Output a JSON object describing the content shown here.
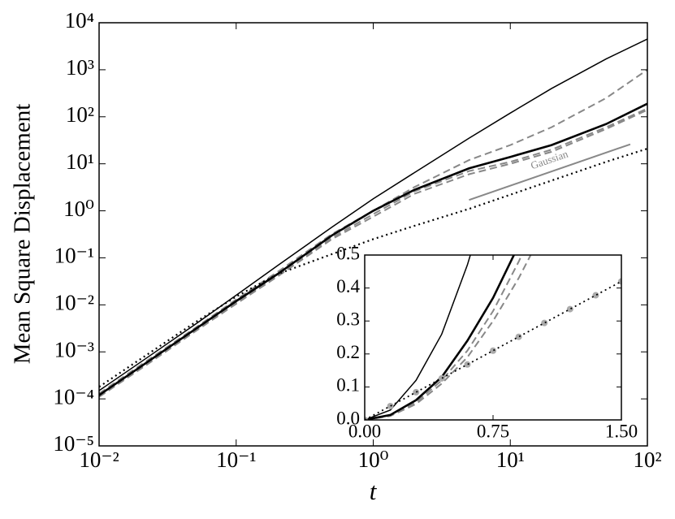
{
  "chart_data": [
    {
      "type": "line",
      "x_label": "t",
      "y_label": "Mean Square Displacement",
      "x_scale": "log",
      "y_scale": "log",
      "xlim": [
        0.01,
        100
      ],
      "ylim": [
        1e-05,
        10000
      ],
      "xticks": [
        {
          "value": 0.01,
          "label": "10⁻²"
        },
        {
          "value": 0.1,
          "label": "10⁻¹"
        },
        {
          "value": 1,
          "label": "10⁰"
        },
        {
          "value": 10,
          "label": "10¹"
        },
        {
          "value": 100,
          "label": "10²"
        }
      ],
      "yticks": [
        {
          "value": 1e-05,
          "label": "10⁻⁵"
        },
        {
          "value": 0.0001,
          "label": "10⁻⁴"
        },
        {
          "value": 0.001,
          "label": "10⁻³"
        },
        {
          "value": 0.01,
          "label": "10⁻²"
        },
        {
          "value": 0.1,
          "label": "10⁻¹"
        },
        {
          "value": 1,
          "label": "10⁰"
        },
        {
          "value": 10,
          "label": "10¹"
        },
        {
          "value": 100,
          "label": "10²"
        },
        {
          "value": 1000,
          "label": "10³"
        },
        {
          "value": 10000,
          "label": "10⁴"
        }
      ],
      "x": [
        0.01,
        0.02,
        0.05,
        0.1,
        0.2,
        0.5,
        1,
        2,
        5,
        10,
        20,
        50,
        100
      ],
      "series": [
        {
          "color": "#000000",
          "dash": "solid",
          "width": 1.5,
          "values": [
            0.00015,
            0.0006,
            0.0038,
            0.016,
            0.068,
            0.45,
            1.8,
            6.5,
            35,
            120,
            400,
            1700,
            4500
          ]
        },
        {
          "color": "#888888",
          "dash": "dashed",
          "width": 2,
          "values": [
            0.00013,
            0.00052,
            0.0032,
            0.013,
            0.05,
            0.32,
            1.0,
            3.2,
            12,
            25,
            60,
            250,
            1000
          ]
        },
        {
          "color": "#888888",
          "dash": "dashed",
          "width": 2,
          "values": [
            0.000115,
            0.00045,
            0.0028,
            0.011,
            0.042,
            0.27,
            0.85,
            2.6,
            7,
            11,
            20,
            60,
            150
          ]
        },
        {
          "color": "#888888",
          "dash": "dashed",
          "width": 2,
          "values": [
            0.00011,
            0.00043,
            0.0027,
            0.0105,
            0.04,
            0.25,
            0.75,
            2.3,
            6,
            10,
            18,
            55,
            140
          ]
        },
        {
          "color": "#000000",
          "dash": "solid",
          "width": 2.6,
          "values": [
            0.00012,
            0.00048,
            0.003,
            0.012,
            0.045,
            0.3,
            1.0,
            2.8,
            8,
            14,
            25,
            70,
            190
          ]
        },
        {
          "color": "#000000",
          "dash": "dotted",
          "width": 2.2,
          "values": [
            0.00018,
            0.0007,
            0.0042,
            0.015,
            0.045,
            0.12,
            0.25,
            0.48,
            1.1,
            2.2,
            4.4,
            11,
            21
          ]
        }
      ],
      "annotations": [
        {
          "text": "Gaussian",
          "color": "#888888",
          "x": [
            5,
            75
          ],
          "y": [
            1.7,
            26
          ]
        }
      ]
    },
    {
      "type": "line",
      "x_scale": "linear",
      "y_scale": "linear",
      "xlim": [
        0,
        1.5
      ],
      "ylim": [
        0,
        0.5
      ],
      "xticks": [
        {
          "value": 0,
          "label": "0.00"
        },
        0.75,
        {
          "value": 1.5,
          "label": "1.50"
        }
      ],
      "yticks": [
        {
          "value": 0,
          "label": "0.0"
        },
        0.1,
        0.2,
        0.3,
        0.4,
        0.5
      ],
      "x": [
        0,
        0.15,
        0.3,
        0.45,
        0.6,
        0.75,
        0.9,
        1.05,
        1.2,
        1.35,
        1.5
      ],
      "series": [
        {
          "color": "#000000",
          "dash": "solid",
          "width": 1.5,
          "values": [
            0,
            0.03,
            0.12,
            0.26,
            0.47,
            0.73,
            null,
            null,
            null,
            null,
            null
          ]
        },
        {
          "color": "#888888",
          "dash": "dashed",
          "width": 2,
          "values": [
            0,
            0.013,
            0.053,
            0.12,
            0.21,
            0.33,
            0.48,
            0.65,
            null,
            null,
            null
          ]
        },
        {
          "color": "#888888",
          "dash": "dashed",
          "width": 2,
          "values": [
            0,
            0.012,
            0.048,
            0.11,
            0.19,
            0.3,
            0.43,
            0.58,
            null,
            null,
            null
          ]
        },
        {
          "color": "#000000",
          "dash": "solid",
          "width": 2.6,
          "values": [
            0,
            0.015,
            0.06,
            0.13,
            0.24,
            0.37,
            0.53,
            null,
            null,
            null,
            null
          ]
        },
        {
          "color": "#aaaaaa",
          "dash": "markers",
          "width": 4,
          "values": [
            0,
            0.042,
            0.084,
            0.126,
            0.168,
            0.21,
            0.252,
            0.294,
            0.336,
            0.378,
            0.42
          ]
        },
        {
          "color": "#000000",
          "dash": "dotted",
          "width": 1.8,
          "values": [
            0,
            0.042,
            0.084,
            0.126,
            0.168,
            0.21,
            0.252,
            0.294,
            0.336,
            0.378,
            0.42
          ]
        }
      ]
    }
  ]
}
